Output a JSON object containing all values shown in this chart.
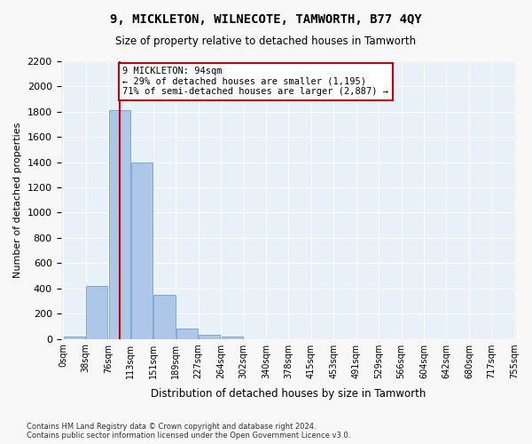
{
  "title": "9, MICKLETON, WILNECOTE, TAMWORTH, B77 4QY",
  "subtitle": "Size of property relative to detached houses in Tamworth",
  "xlabel": "Distribution of detached houses by size in Tamworth",
  "ylabel": "Number of detached properties",
  "bar_color": "#aec6e8",
  "bar_edge_color": "#5599cc",
  "background_color": "#e8f0f8",
  "grid_color": "#ffffff",
  "annotation_box_color": "#cc0000",
  "property_line_color": "#cc0000",
  "bin_labels": [
    "0sqm",
    "38sqm",
    "76sqm",
    "113sqm",
    "151sqm",
    "189sqm",
    "227sqm",
    "264sqm",
    "302sqm",
    "340sqm",
    "378sqm",
    "415sqm",
    "453sqm",
    "491sqm",
    "529sqm",
    "566sqm",
    "604sqm",
    "642sqm",
    "680sqm",
    "717sqm",
    "755sqm"
  ],
  "bar_values": [
    15,
    420,
    1810,
    1400,
    350,
    80,
    35,
    18,
    0,
    0,
    0,
    0,
    0,
    0,
    0,
    0,
    0,
    0,
    0,
    0
  ],
  "property_size": 94,
  "property_bin_index": 2,
  "annotation_text": "9 MICKLETON: 94sqm\n← 29% of detached houses are smaller (1,195)\n71% of semi-detached houses are larger (2,887) →",
  "ylim": [
    0,
    2200
  ],
  "yticks": [
    0,
    200,
    400,
    600,
    800,
    1000,
    1200,
    1400,
    1600,
    1800,
    2000,
    2200
  ],
  "footer_text": "Contains HM Land Registry data © Crown copyright and database right 2024.\nContains public sector information licensed under the Open Government Licence v3.0."
}
